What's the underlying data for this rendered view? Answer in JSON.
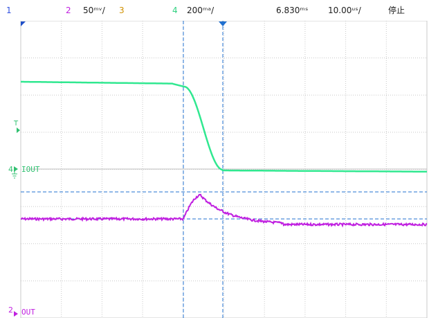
{
  "colors": {
    "ch1": "#3050e0",
    "ch2": "#c020e0",
    "ch3": "#d09000",
    "ch4": "#30e890",
    "grid": "#c8c8c8",
    "cursor": "#2070d0",
    "text": "#202020"
  },
  "status_bar": {
    "ch1_label": "1",
    "ch2_label": "2",
    "ch2_scale": "50ᵐᵛ/",
    "ch3_label": "3",
    "ch4_label": "4",
    "ch4_scale": "200ᵐᵃ/",
    "trigger_time": "6.830ᵐˢ",
    "time_per_div": "10.00ᵘˢ/",
    "run_state": "停止"
  },
  "markers": {
    "trigger_level_label": "T",
    "ch4_marker": "4",
    "ch4_trace_label": "IOUT",
    "ch2_marker": "2",
    "ch2_trace_label": "OUT"
  },
  "scope": {
    "trigger_pos": "top-left",
    "grid": true,
    "divisions": {
      "horizontal": 10,
      "vertical": 8
    }
  }
}
